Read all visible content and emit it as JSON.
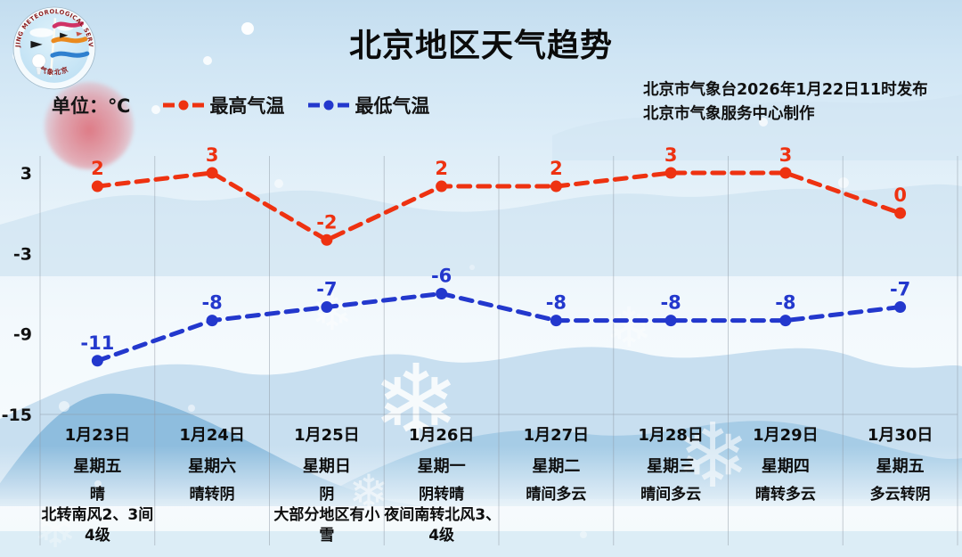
{
  "header": {
    "title": "北京地区天气趋势",
    "issued_line1": "北京市气象台2026年1月22日11时发布",
    "issued_line2": "北京市气象服务中心制作",
    "logo": {
      "arc_text_top": "BEIJING METEOROLOGICAL SERVICE",
      "arc_text_bottom": "气象北京"
    }
  },
  "legend": {
    "unit_label": "单位：℃",
    "items": [
      {
        "label": "最高气温",
        "color": "#ee3211"
      },
      {
        "label": "最低气温",
        "color": "#2338cd"
      }
    ]
  },
  "decor": {
    "snowflake_glyph": "❄"
  },
  "chart_data": {
    "type": "line",
    "title": "北京地区天气趋势",
    "unit": "℃",
    "categories": [
      "1月23日",
      "1月24日",
      "1月25日",
      "1月26日",
      "1月27日",
      "1月28日",
      "1月29日",
      "1月30日"
    ],
    "weekdays": [
      "星期五",
      "星期六",
      "星期日",
      "星期一",
      "星期二",
      "星期三",
      "星期四",
      "星期五"
    ],
    "weather": [
      "晴\n北转南风2、3间\n4级",
      "晴转阴",
      "阴\n大部分地区有小\n雪",
      "阴转晴\n夜间南转北风3、\n4级",
      "晴间多云",
      "晴间多云",
      "晴转多云",
      "多云转阴"
    ],
    "series": [
      {
        "name": "最高气温",
        "color": "#ee3211",
        "values": [
          2,
          3,
          -2,
          2,
          2,
          3,
          3,
          0
        ]
      },
      {
        "name": "最低气温",
        "color": "#2338cd",
        "values": [
          -11,
          -8,
          -7,
          -6,
          -8,
          -8,
          -8,
          -7
        ]
      }
    ],
    "yticks": [
      3,
      -3,
      -9,
      -15
    ],
    "ylim": [
      -15,
      3
    ],
    "grid": "vertical column separators + baseline at -15",
    "legend_position": "top-left"
  }
}
